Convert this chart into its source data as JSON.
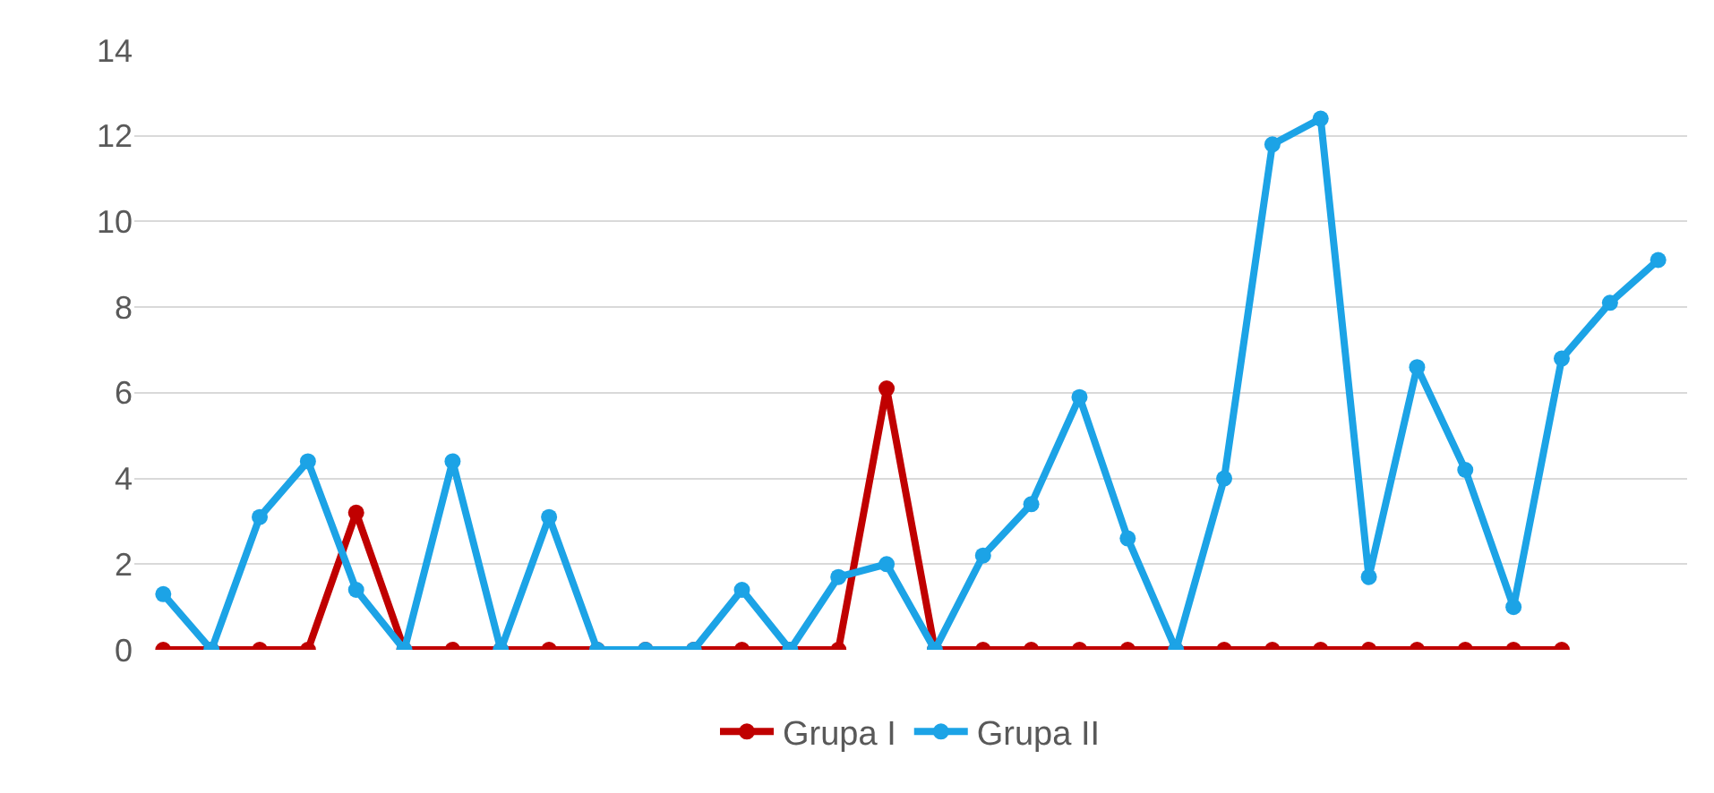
{
  "chart_data": {
    "type": "line",
    "categories": [
      null,
      null,
      null,
      null,
      null,
      null,
      null,
      null,
      null,
      null,
      null,
      null,
      null,
      null,
      null,
      null,
      null,
      null,
      null,
      null,
      null,
      null,
      null,
      null,
      null,
      null,
      null,
      null,
      null,
      null,
      null,
      null
    ],
    "series": [
      {
        "name": "Grupa I",
        "color": "#c00000",
        "values": [
          0,
          0,
          0,
          0,
          3.2,
          0,
          0,
          0,
          0,
          0,
          0,
          0,
          0,
          0,
          0,
          6.1,
          0,
          0,
          0,
          0,
          0,
          0,
          0,
          0,
          0,
          0,
          0,
          0,
          0,
          0,
          null,
          null
        ]
      },
      {
        "name": "Grupa II",
        "color": "#1ca3e6",
        "values": [
          1.3,
          0,
          3.1,
          4.4,
          1.4,
          0,
          4.4,
          0,
          3.1,
          0,
          0,
          0,
          1.4,
          0,
          1.7,
          2.0,
          0,
          2.2,
          3.4,
          5.9,
          2.6,
          0,
          4.0,
          11.8,
          12.4,
          1.7,
          6.6,
          4.2,
          1.0,
          6.8,
          8.1,
          9.1
        ]
      }
    ],
    "ylim": [
      0,
      14
    ],
    "yticks": [
      0,
      2,
      4,
      6,
      8,
      10,
      12,
      14
    ],
    "grid": "y",
    "legend": "bottom",
    "marker": "circle",
    "line_style": "solid"
  }
}
